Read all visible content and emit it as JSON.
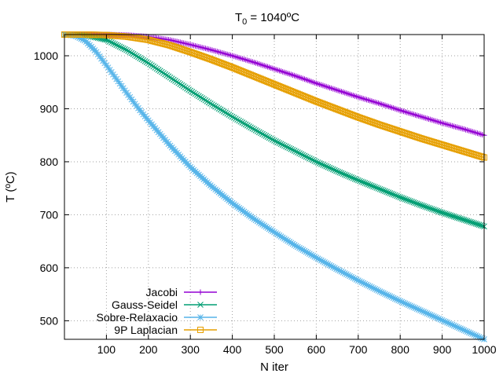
{
  "chart_data": {
    "type": "line",
    "title_main": "T",
    "title_sub": "0",
    "title_rest": " = 1040ºC",
    "xlabel": "N iter",
    "ylabel": "T (ºC)",
    "xlim": [
      0,
      1000
    ],
    "ylim": [
      465,
      1040
    ],
    "xticks": [
      100,
      200,
      300,
      400,
      500,
      600,
      700,
      800,
      900,
      1000
    ],
    "yticks": [
      500,
      600,
      700,
      800,
      900,
      1000
    ],
    "grid": true,
    "legend_position": "bottom-left",
    "series": [
      {
        "name": "Jacobi",
        "color": "#9400d3",
        "marker": "plus",
        "x": [
          0,
          50,
          100,
          150,
          200,
          250,
          300,
          350,
          400,
          450,
          500,
          550,
          600,
          650,
          700,
          750,
          800,
          850,
          900,
          950,
          1000
        ],
        "y": [
          1040,
          1040,
          1040,
          1039,
          1036,
          1030,
          1021,
          1011,
          1000,
          988,
          975,
          962,
          948,
          935,
          922,
          910,
          897,
          885,
          873,
          862,
          850
        ]
      },
      {
        "name": "Gauss-Seidel",
        "color": "#009e73",
        "marker": "x",
        "x": [
          0,
          50,
          100,
          150,
          200,
          250,
          300,
          350,
          400,
          450,
          500,
          550,
          600,
          650,
          700,
          750,
          800,
          850,
          900,
          950,
          1000
        ],
        "y": [
          1040,
          1039,
          1030,
          1010,
          986,
          960,
          934,
          909,
          885,
          862,
          840,
          820,
          800,
          782,
          765,
          749,
          733,
          718,
          704,
          691,
          678
        ]
      },
      {
        "name": "Sobre-Relaxacio",
        "color": "#56b4e9",
        "marker": "star",
        "x": [
          0,
          25,
          50,
          75,
          100,
          125,
          150,
          175,
          200,
          250,
          300,
          350,
          400,
          450,
          500,
          550,
          600,
          650,
          700,
          750,
          800,
          850,
          900,
          950,
          1000
        ],
        "y": [
          1040,
          1038,
          1028,
          1008,
          982,
          955,
          928,
          902,
          878,
          832,
          790,
          754,
          722,
          693,
          667,
          642,
          619,
          597,
          576,
          556,
          537,
          519,
          501,
          483,
          465
        ]
      },
      {
        "name": "9P Laplacian",
        "color": "#e69f00",
        "marker": "square",
        "x": [
          0,
          50,
          100,
          150,
          200,
          250,
          300,
          350,
          400,
          450,
          500,
          550,
          600,
          650,
          700,
          750,
          800,
          850,
          900,
          950,
          1000
        ],
        "y": [
          1040,
          1040,
          1039,
          1036,
          1030,
          1020,
          1007,
          993,
          978,
          962,
          946,
          930,
          914,
          899,
          884,
          870,
          857,
          844,
          832,
          820,
          808
        ]
      }
    ]
  }
}
